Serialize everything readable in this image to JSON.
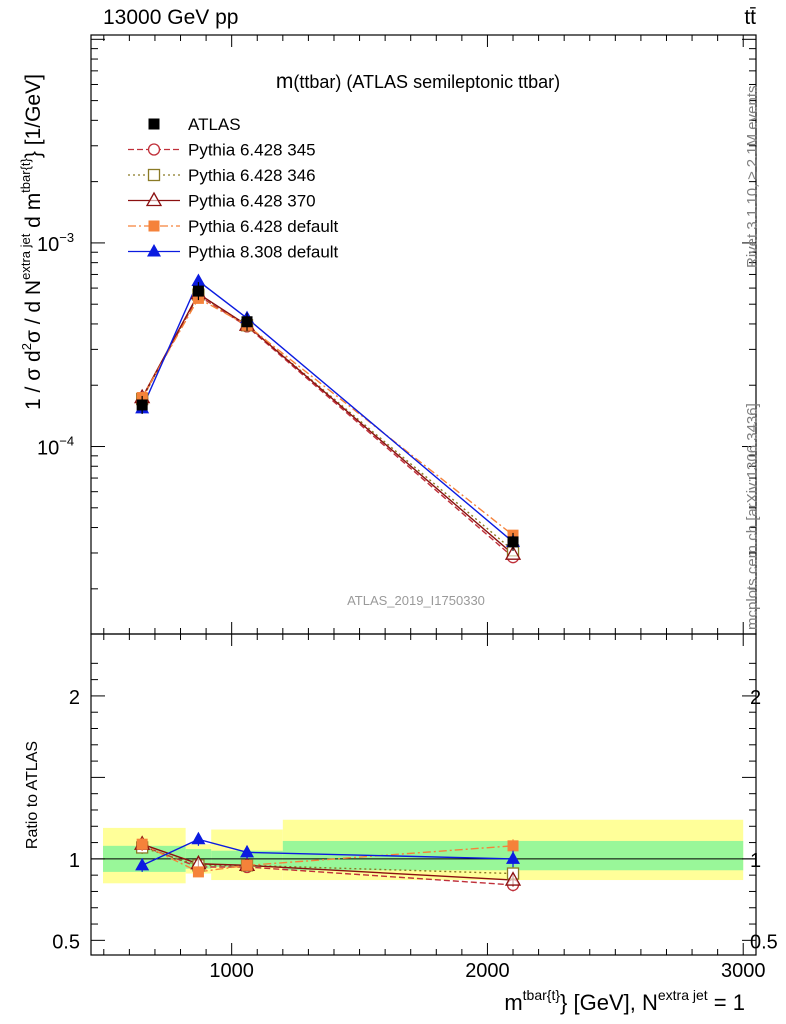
{
  "header": {
    "energy_label": "13000 GeV pp",
    "process_label": "tt̄"
  },
  "side_text": {
    "rivet": "Rivet 3.1.10, ≥ 2.1M events",
    "mcplots": "mcplots.cern.ch [arXiv:1306.3436]"
  },
  "chart_data": {
    "type": "line",
    "title": "m(ttbar) (ATLAS semileptonic ttbar)",
    "analysis_label": "ATLAS_2019_I1750330",
    "xlabel": "m^{tbar{t}} [GeV], N^{extra jet} = 1",
    "ylabel": "1 / σ d²σ / d N^{extra jet} d m^{tbar{t}} [1/GeV]",
    "ratio_ylabel": "Ratio to ATLAS",
    "xlim": [
      450,
      3050
    ],
    "ylim": [
      1.2e-05,
      0.0105
    ],
    "ylog": true,
    "ratio_ylim": [
      0.41,
      2.38
    ],
    "x_ticks": [
      1000,
      2000,
      3000
    ],
    "y_ticks": [
      "10^-3",
      "10^-4"
    ],
    "ratio_ticks": [
      0.5,
      1,
      2
    ],
    "legend_position": "top-left",
    "bins": [
      {
        "xlow": 450,
        "xhigh": 820,
        "x": 650
      },
      {
        "xlow": 820,
        "xhigh": 920,
        "x": 870
      },
      {
        "xlow": 920,
        "xhigh": 1200,
        "x": 1060
      },
      {
        "xlow": 1200,
        "xhigh": 3000,
        "x": 2100
      }
    ],
    "data": {
      "name": "ATLAS",
      "x": [
        650,
        870,
        1060,
        2100
      ],
      "y": [
        0.00016,
        0.00058,
        0.00041,
        3.4e-05
      ],
      "stat_band": [
        [
          0.92,
          1.08
        ],
        [
          0.94,
          1.06
        ],
        [
          0.95,
          1.05
        ],
        [
          0.93,
          1.11
        ]
      ],
      "total_band": [
        [
          0.85,
          1.19
        ],
        [
          0.91,
          1.09
        ],
        [
          0.87,
          1.18
        ],
        [
          0.87,
          1.24
        ]
      ]
    },
    "series": [
      {
        "name": "Pythia 6.428 345",
        "color": "#c0303a",
        "dash": "6,3",
        "marker": "open-circle",
        "y": [
          0.000172,
          0.000551,
          0.000389,
          2.86e-05
        ],
        "ratio": [
          1.08,
          0.95,
          0.95,
          0.84
        ],
        "err": [
          0.04,
          0.03,
          0.03,
          0.04
        ]
      },
      {
        "name": "Pythia 6.428 346",
        "color": "#8a7a26",
        "dash": "2,3",
        "marker": "open-square",
        "y": [
          0.000171,
          0.000557,
          0.000394,
          3.09e-05
        ],
        "ratio": [
          1.07,
          0.96,
          0.96,
          0.91
        ],
        "err": [
          0.04,
          0.03,
          0.03,
          0.04
        ]
      },
      {
        "name": "Pythia 6.428 370",
        "color": "#8b1010",
        "dash": "",
        "marker": "open-triangle",
        "y": [
          0.000174,
          0.000563,
          0.000394,
          2.96e-05
        ],
        "ratio": [
          1.09,
          0.97,
          0.96,
          0.87
        ],
        "err": [
          0.04,
          0.03,
          0.03,
          0.04
        ]
      },
      {
        "name": "Pythia 6.428 default",
        "color": "#f5823a",
        "dash": "8,3,2,3",
        "marker": "filled-square",
        "y": [
          0.000174,
          0.000534,
          0.000394,
          3.67e-05
        ],
        "ratio": [
          1.09,
          0.92,
          0.96,
          1.08
        ],
        "err": [
          0.04,
          0.03,
          0.03,
          0.04
        ]
      },
      {
        "name": "Pythia 8.308 default",
        "color": "#0b1be0",
        "dash": "",
        "marker": "filled-triangle",
        "y": [
          0.000154,
          0.00065,
          0.000427,
          3.4e-05
        ],
        "ratio": [
          0.96,
          1.12,
          1.04,
          1.0
        ],
        "err": [
          0.04,
          0.04,
          0.04,
          0.05
        ]
      }
    ]
  }
}
